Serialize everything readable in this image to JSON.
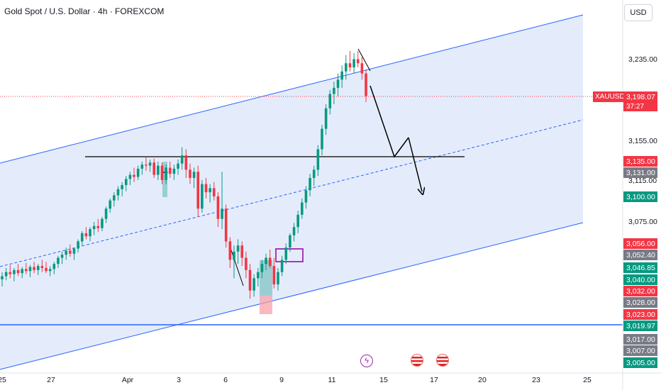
{
  "header": {
    "title": "Gold Spot / U.S. Dollar · 4h · FOREXCOM",
    "currency": "USD"
  },
  "chart_data": {
    "type": "candlestick",
    "symbol": "XAUUSD",
    "timeframe": "4h",
    "current_price": "3,198.07",
    "countdown": "37:27",
    "y_ticks": [
      "3,235.00",
      "3,155.00",
      "3,115.00",
      "3,075.00"
    ],
    "x_ticks": [
      "25",
      "27",
      "Apr",
      "3",
      "6",
      "9",
      "11",
      "15",
      "17",
      "20",
      "23",
      "25"
    ],
    "price_labels": [
      {
        "text": "3,135.00",
        "color": "#f23645"
      },
      {
        "text": "3,131.00",
        "color": "#787b86"
      },
      {
        "text": "3,100.00",
        "color": "#089981"
      },
      {
        "text": "3,056.00",
        "color": "#f23645"
      },
      {
        "text": "3,052.40",
        "color": "#787b86"
      },
      {
        "text": "3,046.85",
        "color": "#089981"
      },
      {
        "text": "3,040.00",
        "color": "#089981"
      },
      {
        "text": "3,032.00",
        "color": "#f23645"
      },
      {
        "text": "3,028.00",
        "color": "#787b86"
      },
      {
        "text": "3,023.00",
        "color": "#f23645"
      },
      {
        "text": "3,019.97",
        "color": "#089981"
      },
      {
        "text": "3,017.00",
        "color": "#787b86"
      },
      {
        "text": "3,007.00",
        "color": "#787b86"
      },
      {
        "text": "3,005.00",
        "color": "#089981"
      }
    ],
    "candles": [
      [
        3019,
        3026,
        3012,
        3022
      ],
      [
        3022,
        3030,
        3018,
        3026
      ],
      [
        3026,
        3033,
        3020,
        3024
      ],
      [
        3024,
        3030,
        3017,
        3028
      ],
      [
        3028,
        3034,
        3022,
        3025
      ],
      [
        3025,
        3031,
        3020,
        3029
      ],
      [
        3029,
        3035,
        3024,
        3027
      ],
      [
        3027,
        3033,
        3021,
        3031
      ],
      [
        3031,
        3036,
        3025,
        3028
      ],
      [
        3028,
        3034,
        3023,
        3032
      ],
      [
        3032,
        3038,
        3026,
        3030
      ],
      [
        3030,
        3036,
        3025,
        3027
      ],
      [
        3027,
        3032,
        3022,
        3029
      ],
      [
        3029,
        3036,
        3024,
        3034
      ],
      [
        3034,
        3042,
        3030,
        3040
      ],
      [
        3040,
        3046,
        3034,
        3043
      ],
      [
        3043,
        3050,
        3038,
        3047
      ],
      [
        3047,
        3053,
        3041,
        3044
      ],
      [
        3044,
        3050,
        3038,
        3049
      ],
      [
        3049,
        3058,
        3045,
        3056
      ],
      [
        3056,
        3066,
        3052,
        3064
      ],
      [
        3064,
        3070,
        3058,
        3061
      ],
      [
        3061,
        3070,
        3056,
        3068
      ],
      [
        3068,
        3075,
        3062,
        3071
      ],
      [
        3071,
        3078,
        3065,
        3069
      ],
      [
        3069,
        3080,
        3066,
        3078
      ],
      [
        3078,
        3090,
        3074,
        3088
      ],
      [
        3088,
        3098,
        3084,
        3096
      ],
      [
        3096,
        3104,
        3090,
        3101
      ],
      [
        3101,
        3110,
        3096,
        3107
      ],
      [
        3107,
        3114,
        3100,
        3111
      ],
      [
        3111,
        3120,
        3105,
        3117
      ],
      [
        3117,
        3124,
        3111,
        3121
      ],
      [
        3121,
        3128,
        3114,
        3119
      ],
      [
        3119,
        3130,
        3116,
        3127
      ],
      [
        3127,
        3134,
        3121,
        3131
      ],
      [
        3131,
        3138,
        3125,
        3130
      ],
      [
        3130,
        3136,
        3124,
        3133
      ],
      [
        3133,
        3137,
        3118,
        3121
      ],
      [
        3121,
        3134,
        3116,
        3130
      ],
      [
        3130,
        3133,
        3112,
        3116
      ],
      [
        3116,
        3131,
        3112,
        3128
      ],
      [
        3128,
        3134,
        3118,
        3122
      ],
      [
        3122,
        3131,
        3116,
        3127
      ],
      [
        3127,
        3136,
        3121,
        3132
      ],
      [
        3132,
        3148,
        3126,
        3140
      ],
      [
        3140,
        3146,
        3118,
        3126
      ],
      [
        3126,
        3132,
        3112,
        3118
      ],
      [
        3118,
        3128,
        3108,
        3124
      ],
      [
        3124,
        3130,
        3080,
        3088
      ],
      [
        3088,
        3116,
        3084,
        3112
      ],
      [
        3112,
        3118,
        3098,
        3104
      ],
      [
        3104,
        3112,
        3094,
        3108
      ],
      [
        3108,
        3114,
        3096,
        3100
      ],
      [
        3100,
        3104,
        3070,
        3078
      ],
      [
        3078,
        3124,
        3068,
        3088
      ],
      [
        3088,
        3092,
        3050,
        3056
      ],
      [
        3056,
        3060,
        3030,
        3038
      ],
      [
        3038,
        3052,
        3020,
        3046
      ],
      [
        3046,
        3058,
        3034,
        3052
      ],
      [
        3052,
        3056,
        3032,
        3040
      ],
      [
        3040,
        3046,
        3020,
        3028
      ],
      [
        3028,
        3034,
        3000,
        3008
      ],
      [
        3008,
        3024,
        3002,
        3020
      ],
      [
        3020,
        3030,
        3012,
        3026
      ],
      [
        3026,
        3038,
        3020,
        3034
      ],
      [
        3034,
        3044,
        3028,
        3040
      ],
      [
        3040,
        3048,
        3030,
        3032
      ],
      [
        3032,
        3040,
        3010,
        3014
      ],
      [
        3014,
        3030,
        3008,
        3026
      ],
      [
        3026,
        3042,
        3022,
        3038
      ],
      [
        3038,
        3054,
        3034,
        3050
      ],
      [
        3050,
        3064,
        3046,
        3062
      ],
      [
        3062,
        3074,
        3056,
        3070
      ],
      [
        3070,
        3086,
        3064,
        3082
      ],
      [
        3082,
        3098,
        3078,
        3094
      ],
      [
        3094,
        3110,
        3088,
        3106
      ],
      [
        3106,
        3122,
        3100,
        3118
      ],
      [
        3118,
        3130,
        3110,
        3126
      ],
      [
        3126,
        3150,
        3120,
        3146
      ],
      [
        3146,
        3170,
        3140,
        3166
      ],
      [
        3166,
        3190,
        3160,
        3186
      ],
      [
        3186,
        3204,
        3180,
        3200
      ],
      [
        3200,
        3212,
        3190,
        3206
      ],
      [
        3206,
        3220,
        3198,
        3214
      ],
      [
        3214,
        3228,
        3206,
        3222
      ],
      [
        3222,
        3238,
        3214,
        3230
      ],
      [
        3230,
        3242,
        3222,
        3226
      ],
      [
        3226,
        3240,
        3220,
        3234
      ],
      [
        3234,
        3242,
        3226,
        3230
      ],
      [
        3230,
        3236,
        3214,
        3220
      ],
      [
        3220,
        3224,
        3192,
        3198
      ]
    ]
  }
}
